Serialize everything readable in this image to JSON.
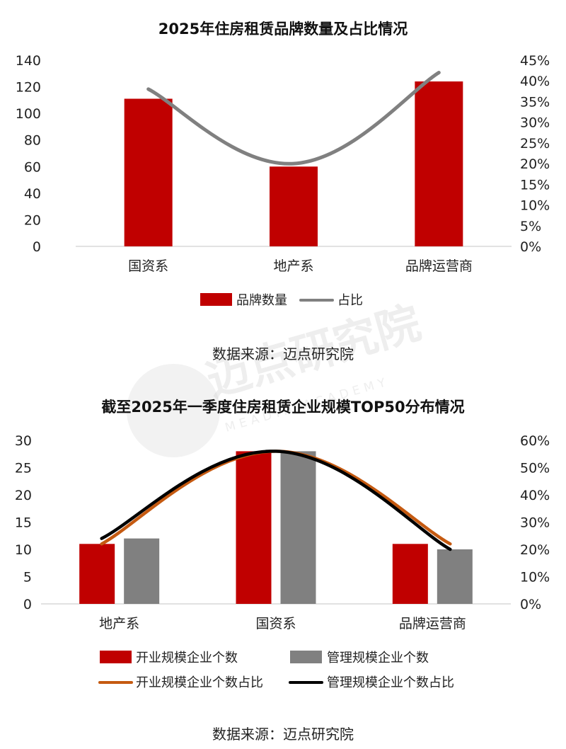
{
  "watermark": {
    "text": "迈点研究院",
    "subtext": "MEADIN ACADEMY"
  },
  "chart_data": [
    {
      "type": "bar",
      "title": "2025年住房租赁品牌数量及占比情况",
      "categories": [
        "国资系",
        "地产系",
        "品牌运营商"
      ],
      "ylim": [
        0,
        140
      ],
      "y_ticks": [
        "0",
        "20",
        "40",
        "60",
        "80",
        "100",
        "120",
        "140"
      ],
      "y2lim": [
        0,
        0.45
      ],
      "y2_ticks": [
        "0%",
        "5%",
        "10%",
        "15%",
        "20%",
        "25%",
        "30%",
        "35%",
        "40%",
        "45%"
      ],
      "series": [
        {
          "name": "品牌数量",
          "type": "bar",
          "axis": "left",
          "color": "#C00000",
          "values": [
            111,
            60,
            124
          ]
        },
        {
          "name": "占比",
          "type": "line",
          "axis": "right",
          "color": "#808080",
          "values": [
            0.38,
            0.2,
            0.42
          ]
        }
      ],
      "source": "数据来源：迈点研究院"
    },
    {
      "type": "bar",
      "title": "截至2025年一季度住房租赁企业规模TOP50分布情况",
      "categories": [
        "地产系",
        "国资系",
        "品牌运营商"
      ],
      "ylim": [
        0,
        30
      ],
      "y_ticks": [
        "0",
        "5",
        "10",
        "15",
        "20",
        "25",
        "30"
      ],
      "y2lim": [
        0,
        0.6
      ],
      "y2_ticks": [
        "0%",
        "10%",
        "20%",
        "30%",
        "40%",
        "50%",
        "60%"
      ],
      "series": [
        {
          "name": "开业规模企业个数",
          "type": "bar",
          "axis": "left",
          "color": "#C00000",
          "values": [
            11,
            28,
            11
          ]
        },
        {
          "name": "管理规模企业个数",
          "type": "bar",
          "axis": "left",
          "color": "#808080",
          "values": [
            12,
            28,
            10
          ]
        },
        {
          "name": "开业规模企业个数占比",
          "type": "line",
          "axis": "right",
          "color": "#C55A11",
          "values": [
            0.22,
            0.56,
            0.22
          ]
        },
        {
          "name": "管理规模企业个数占比",
          "type": "line",
          "axis": "right",
          "color": "#000000",
          "values": [
            0.24,
            0.56,
            0.2
          ]
        }
      ],
      "source": "数据来源：迈点研究院"
    }
  ]
}
